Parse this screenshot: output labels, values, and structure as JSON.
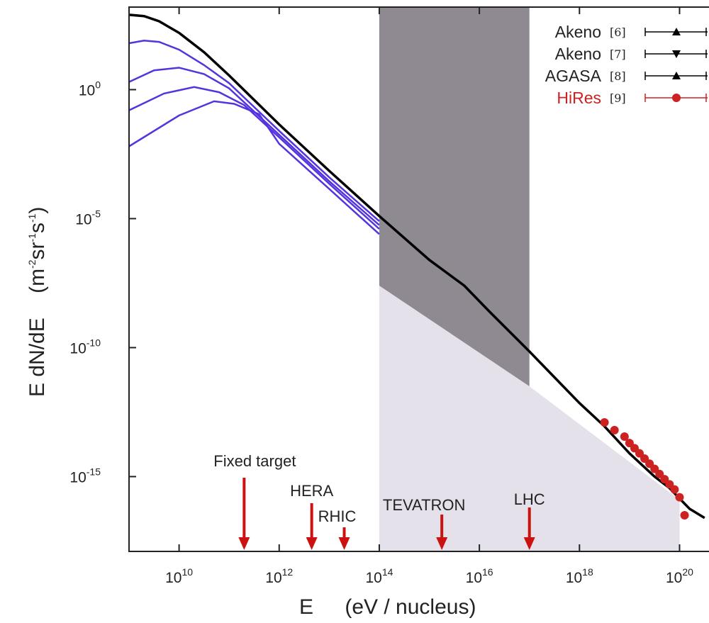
{
  "chart_data": {
    "type": "line",
    "xlabel": "E",
    "xlabel_units": "(eV / nucleus)",
    "ylabel": "E dN/dE",
    "ylabel_units_base": [
      "(m",
      "sr",
      "s",
      ")"
    ],
    "ylabel_units_exps": [
      "-2",
      "-1",
      "-1"
    ],
    "xscale": "log",
    "yscale": "log",
    "xlim_exp": [
      9,
      20.9
    ],
    "ylim_exp": [
      -17.9,
      3.2
    ],
    "x_ticks": [
      {
        "base": "10",
        "exp": "10",
        "value_exp": 10
      },
      {
        "base": "10",
        "exp": "12",
        "value_exp": 12
      },
      {
        "base": "10",
        "exp": "14",
        "value_exp": 14
      },
      {
        "base": "10",
        "exp": "16",
        "value_exp": 16
      },
      {
        "base": "10",
        "exp": "18",
        "value_exp": 18
      },
      {
        "base": "10",
        "exp": "20",
        "value_exp": 20
      }
    ],
    "y_ticks": [
      {
        "base": "10",
        "exp": "0",
        "value_exp": 0
      },
      {
        "base": "10",
        "exp": "-5",
        "value_exp": -5
      },
      {
        "base": "10",
        "exp": "-10",
        "value_exp": -10
      },
      {
        "base": "10",
        "exp": "-15",
        "value_exp": -15
      }
    ],
    "total_spectrum": {
      "color": "#000000",
      "points_log": [
        [
          9.0,
          2.9
        ],
        [
          9.3,
          2.85
        ],
        [
          9.6,
          2.65
        ],
        [
          10.0,
          2.2
        ],
        [
          10.5,
          1.45
        ],
        [
          11.0,
          0.55
        ],
        [
          12.0,
          -1.35
        ],
        [
          13.0,
          -3.15
        ],
        [
          14.0,
          -4.9
        ],
        [
          15.0,
          -6.6
        ],
        [
          15.7,
          -7.6
        ],
        [
          16.2,
          -8.6
        ],
        [
          17.0,
          -10.15
        ],
        [
          18.0,
          -12.15
        ],
        [
          18.5,
          -13.05
        ],
        [
          19.0,
          -14.1
        ],
        [
          19.5,
          -15.0
        ],
        [
          19.8,
          -15.45
        ],
        [
          20.0,
          -15.85
        ],
        [
          20.2,
          -16.25
        ],
        [
          20.5,
          -16.6
        ]
      ]
    },
    "component_spectra": {
      "color": "#5533dd",
      "series": [
        {
          "points_log": [
            [
              9.0,
              1.8
            ],
            [
              9.3,
              1.9
            ],
            [
              9.6,
              1.85
            ],
            [
              10.0,
              1.55
            ],
            [
              10.5,
              0.95
            ],
            [
              11.0,
              0.25
            ],
            [
              12.0,
              -1.6
            ],
            [
              13.0,
              -3.4
            ],
            [
              14.0,
              -5.1
            ]
          ]
        },
        {
          "points_log": [
            [
              9.0,
              0.3
            ],
            [
              9.5,
              0.75
            ],
            [
              10.0,
              0.85
            ],
            [
              10.5,
              0.6
            ],
            [
              11.0,
              0.05
            ],
            [
              12.0,
              -1.75
            ],
            [
              13.0,
              -3.55
            ],
            [
              14.0,
              -5.25
            ]
          ]
        },
        {
          "points_log": [
            [
              9.0,
              -0.8
            ],
            [
              9.7,
              -0.15
            ],
            [
              10.3,
              0.1
            ],
            [
              10.8,
              -0.1
            ],
            [
              11.3,
              -0.6
            ],
            [
              12.0,
              -1.85
            ],
            [
              13.0,
              -3.65
            ],
            [
              14.0,
              -5.4
            ]
          ]
        },
        {
          "points_log": [
            [
              9.0,
              -2.2
            ],
            [
              10.0,
              -1.0
            ],
            [
              10.7,
              -0.45
            ],
            [
              11.1,
              -0.55
            ],
            [
              11.6,
              -0.95
            ],
            [
              12.0,
              -2.1
            ],
            [
              13.0,
              -3.85
            ],
            [
              14.0,
              -5.6
            ]
          ]
        }
      ]
    },
    "hires_points_log": [
      [
        18.5,
        -12.9
      ],
      [
        18.7,
        -13.2
      ],
      [
        18.9,
        -13.45
      ],
      [
        19.0,
        -13.7
      ],
      [
        19.1,
        -13.9
      ],
      [
        19.2,
        -14.1
      ],
      [
        19.3,
        -14.3
      ],
      [
        19.4,
        -14.5
      ],
      [
        19.5,
        -14.7
      ],
      [
        19.6,
        -14.9
      ],
      [
        19.7,
        -15.1
      ],
      [
        19.8,
        -15.3
      ],
      [
        19.9,
        -15.5
      ],
      [
        20.0,
        -15.8
      ],
      [
        20.1,
        -16.5
      ]
    ],
    "bands": [
      {
        "name": "dark",
        "color": "#8f8a92",
        "polygon_log": [
          [
            14.0,
            3.2
          ],
          [
            17.0,
            3.2
          ],
          [
            17.0,
            -11.5
          ],
          [
            14.0,
            -7.6
          ]
        ]
      },
      {
        "name": "light",
        "color": "#e4e1ea",
        "polygon_log": [
          [
            14.0,
            -7.6
          ],
          [
            17.0,
            -11.5
          ],
          [
            20.0,
            -15.9
          ],
          [
            20.0,
            -17.9
          ],
          [
            14.0,
            -17.9
          ]
        ]
      }
    ],
    "legend": {
      "position": "top-right",
      "entries": [
        {
          "name": "Akeno",
          "ref": "[6]",
          "marker": "triangle-up",
          "color": "#000000",
          "text_color": "#222222"
        },
        {
          "name": "Akeno",
          "ref": "[7]",
          "marker": "triangle-down",
          "color": "#000000",
          "text_color": "#222222"
        },
        {
          "name": "AGASA",
          "ref": "[8]",
          "marker": "triangle-up",
          "color": "#000000",
          "text_color": "#222222"
        },
        {
          "name": "HiRes",
          "ref": "[9]",
          "marker": "circle",
          "color": "#cc2222",
          "text_color": "#cc2222"
        }
      ]
    },
    "annotations": {
      "color": "#cc1111",
      "items": [
        {
          "label": "Fixed target",
          "x_exp": 11.3
        },
        {
          "label": "HERA",
          "x_exp": 12.65
        },
        {
          "label": "RHIC",
          "x_exp": 13.3
        },
        {
          "label": "TEVATRON",
          "x_exp": 15.25
        },
        {
          "label": "LHC",
          "x_exp": 17.0
        }
      ]
    }
  }
}
